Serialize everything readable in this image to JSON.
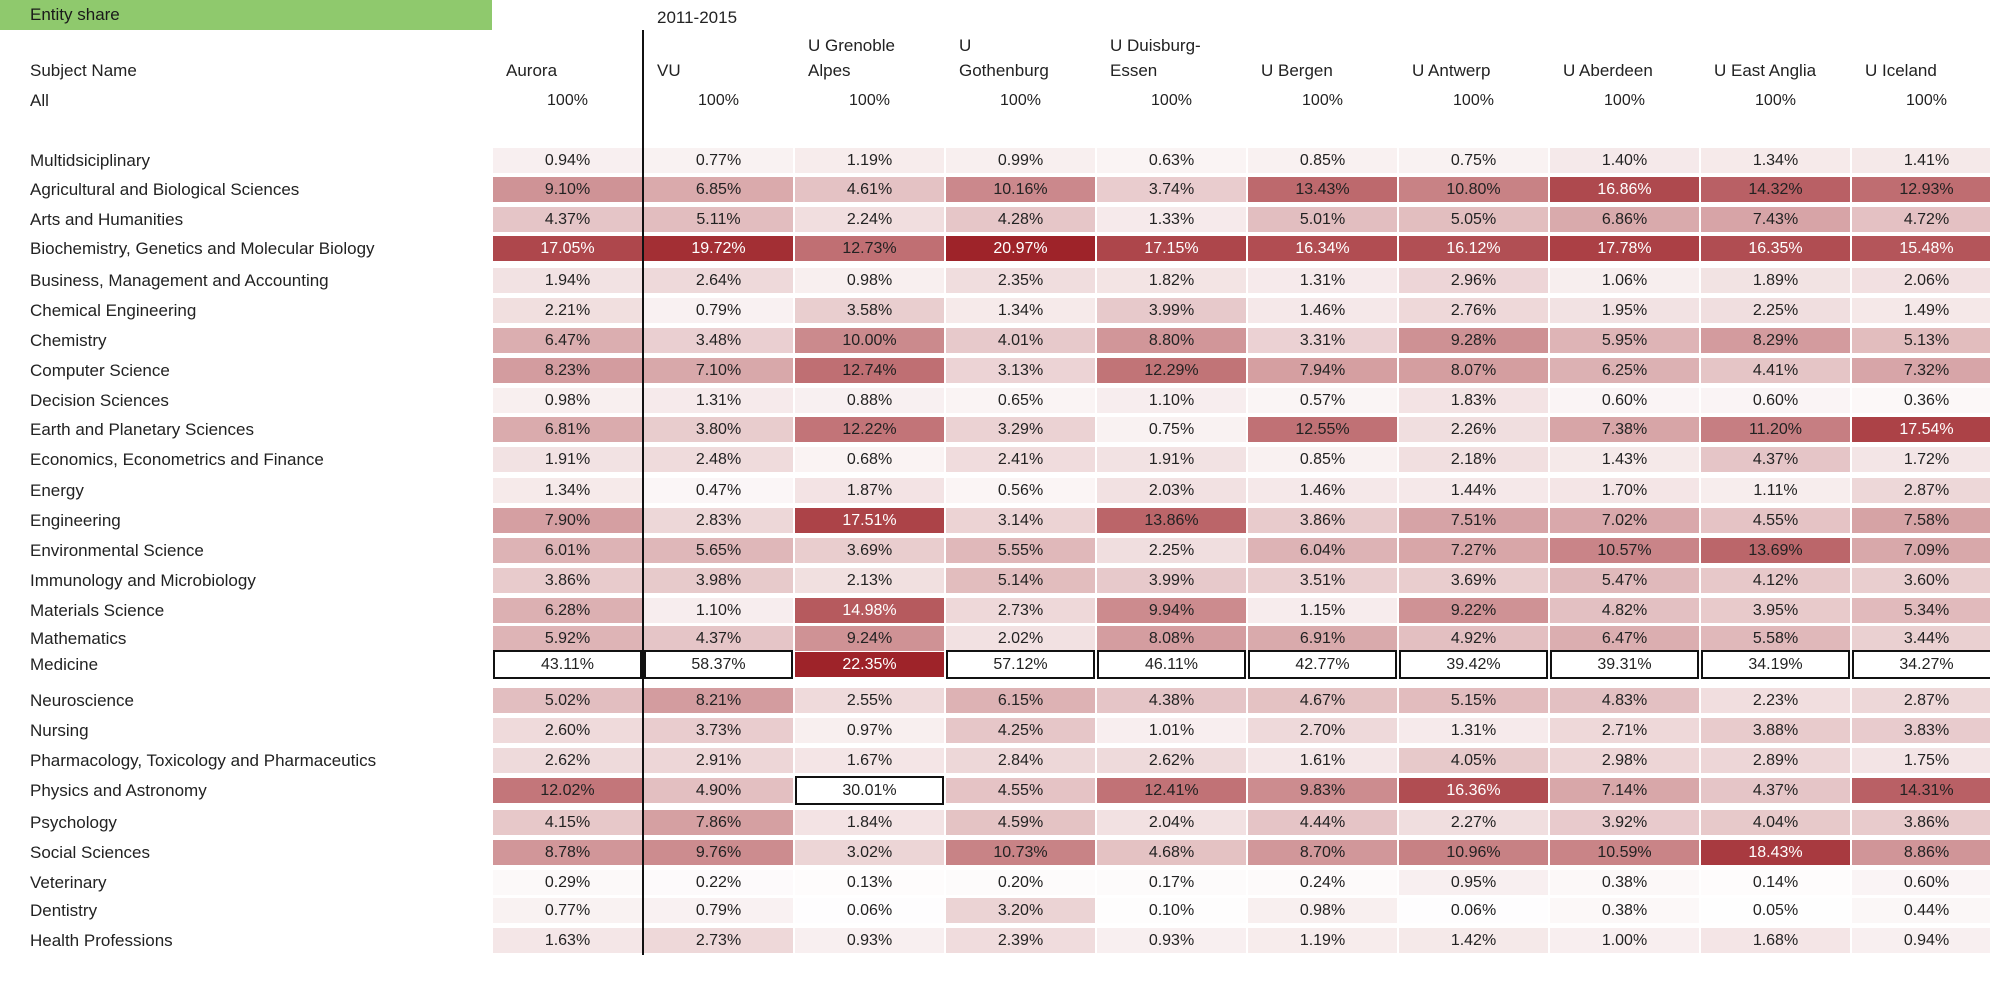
{
  "sheet": {
    "title": "Entity share",
    "period": "2011-2015",
    "row_header": "Subject Name",
    "all_label": "All"
  },
  "chart_data": {
    "type": "heatmap",
    "title": "Entity share",
    "period": "2011-2015",
    "color_scale": {
      "low": "#ffffff",
      "high": "#9e1f25"
    },
    "columns": [
      {
        "name": "Aurora",
        "line1": "",
        "line2": "Aurora"
      },
      {
        "name": "VU",
        "line1": "",
        "line2": "VU"
      },
      {
        "name": "U Grenoble Alpes",
        "line1": "U Grenoble",
        "line2": "Alpes"
      },
      {
        "name": "U Gothenburg",
        "line1": "U",
        "line2": "Gothenburg"
      },
      {
        "name": "U Duisburg-Essen",
        "line1": "U Duisburg-",
        "line2": "Essen"
      },
      {
        "name": "U Bergen",
        "line1": "",
        "line2": "U Bergen"
      },
      {
        "name": "U Antwerp",
        "line1": "",
        "line2": "U Antwerp"
      },
      {
        "name": "U Aberdeen",
        "line1": "",
        "line2": "U Aberdeen"
      },
      {
        "name": "U East Anglia",
        "line1": "",
        "line2": "U East Anglia"
      },
      {
        "name": "U Iceland",
        "line1": "",
        "line2": "U Iceland"
      }
    ],
    "all_values": [
      "100%",
      "100%",
      "100%",
      "100%",
      "100%",
      "100%",
      "100%",
      "100%",
      "100%",
      "100%"
    ],
    "rows": [
      {
        "subject": "Multidsiciplinary",
        "values": [
          "0.94%",
          "0.77%",
          "1.19%",
          "0.99%",
          "0.63%",
          "0.85%",
          "0.75%",
          "1.40%",
          "1.34%",
          "1.41%"
        ]
      },
      {
        "subject": "Agricultural and Biological Sciences",
        "values": [
          "9.10%",
          "6.85%",
          "4.61%",
          "10.16%",
          "3.74%",
          "13.43%",
          "10.80%",
          "16.86%",
          "14.32%",
          "12.93%"
        ]
      },
      {
        "subject": "Arts and Humanities",
        "values": [
          "4.37%",
          "5.11%",
          "2.24%",
          "4.28%",
          "1.33%",
          "5.01%",
          "5.05%",
          "6.86%",
          "7.43%",
          "4.72%"
        ]
      },
      {
        "subject": "Biochemistry, Genetics and Molecular Biology",
        "values": [
          "17.05%",
          "19.72%",
          "12.73%",
          "20.97%",
          "17.15%",
          "16.34%",
          "16.12%",
          "17.78%",
          "16.35%",
          "15.48%"
        ]
      },
      {
        "subject": "Business, Management and Accounting",
        "values": [
          "1.94%",
          "2.64%",
          "0.98%",
          "2.35%",
          "1.82%",
          "1.31%",
          "2.96%",
          "1.06%",
          "1.89%",
          "2.06%"
        ]
      },
      {
        "subject": "Chemical Engineering",
        "values": [
          "2.21%",
          "0.79%",
          "3.58%",
          "1.34%",
          "3.99%",
          "1.46%",
          "2.76%",
          "1.95%",
          "2.25%",
          "1.49%"
        ]
      },
      {
        "subject": "Chemistry",
        "values": [
          "6.47%",
          "3.48%",
          "10.00%",
          "4.01%",
          "8.80%",
          "3.31%",
          "9.28%",
          "5.95%",
          "8.29%",
          "5.13%"
        ]
      },
      {
        "subject": "Computer Science",
        "values": [
          "8.23%",
          "7.10%",
          "12.74%",
          "3.13%",
          "12.29%",
          "7.94%",
          "8.07%",
          "6.25%",
          "4.41%",
          "7.32%"
        ]
      },
      {
        "subject": "Decision Sciences",
        "values": [
          "0.98%",
          "1.31%",
          "0.88%",
          "0.65%",
          "1.10%",
          "0.57%",
          "1.83%",
          "0.60%",
          "0.60%",
          "0.36%"
        ]
      },
      {
        "subject": "Earth and Planetary Sciences",
        "values": [
          "6.81%",
          "3.80%",
          "12.22%",
          "3.29%",
          "0.75%",
          "12.55%",
          "2.26%",
          "7.38%",
          "11.20%",
          "17.54%"
        ]
      },
      {
        "subject": "Economics, Econometrics and Finance",
        "values": [
          "1.91%",
          "2.48%",
          "0.68%",
          "2.41%",
          "1.91%",
          "0.85%",
          "2.18%",
          "1.43%",
          "4.37%",
          "1.72%"
        ]
      },
      {
        "subject": "Energy",
        "values": [
          "1.34%",
          "0.47%",
          "1.87%",
          "0.56%",
          "2.03%",
          "1.46%",
          "1.44%",
          "1.70%",
          "1.11%",
          "2.87%"
        ]
      },
      {
        "subject": "Engineering",
        "values": [
          "7.90%",
          "2.83%",
          "17.51%",
          "3.14%",
          "13.86%",
          "3.86%",
          "7.51%",
          "7.02%",
          "4.55%",
          "7.58%"
        ]
      },
      {
        "subject": "Environmental Science",
        "values": [
          "6.01%",
          "5.65%",
          "3.69%",
          "5.55%",
          "2.25%",
          "6.04%",
          "7.27%",
          "10.57%",
          "13.69%",
          "7.09%"
        ]
      },
      {
        "subject": "Immunology and Microbiology",
        "values": [
          "3.86%",
          "3.98%",
          "2.13%",
          "5.14%",
          "3.99%",
          "3.51%",
          "3.69%",
          "5.47%",
          "4.12%",
          "3.60%"
        ]
      },
      {
        "subject": "Materials Science",
        "values": [
          "6.28%",
          "1.10%",
          "14.98%",
          "2.73%",
          "9.94%",
          "1.15%",
          "9.22%",
          "4.82%",
          "3.95%",
          "5.34%"
        ]
      },
      {
        "subject": "Mathematics",
        "values": [
          "5.92%",
          "4.37%",
          "9.24%",
          "2.02%",
          "8.08%",
          "6.91%",
          "4.92%",
          "6.47%",
          "5.58%",
          "3.44%"
        ]
      },
      {
        "subject": "Medicine",
        "values": [
          "43.11%",
          "58.37%",
          "22.35%",
          "57.12%",
          "46.11%",
          "42.77%",
          "39.42%",
          "39.31%",
          "34.19%",
          "34.27%"
        ]
      },
      {
        "subject": "Neuroscience",
        "values": [
          "5.02%",
          "8.21%",
          "2.55%",
          "6.15%",
          "4.38%",
          "4.67%",
          "5.15%",
          "4.83%",
          "2.23%",
          "2.87%"
        ]
      },
      {
        "subject": "Nursing",
        "values": [
          "2.60%",
          "3.73%",
          "0.97%",
          "4.25%",
          "1.01%",
          "2.70%",
          "1.31%",
          "2.71%",
          "3.88%",
          "3.83%"
        ]
      },
      {
        "subject": "Pharmacology, Toxicology and Pharmaceutics",
        "values": [
          "2.62%",
          "2.91%",
          "1.67%",
          "2.84%",
          "2.62%",
          "1.61%",
          "4.05%",
          "2.98%",
          "2.89%",
          "1.75%"
        ]
      },
      {
        "subject": "Physics and Astronomy",
        "values": [
          "12.02%",
          "4.90%",
          "30.01%",
          "4.55%",
          "12.41%",
          "9.83%",
          "16.36%",
          "7.14%",
          "4.37%",
          "14.31%"
        ]
      },
      {
        "subject": "Psychology",
        "values": [
          "4.15%",
          "7.86%",
          "1.84%",
          "4.59%",
          "2.04%",
          "4.44%",
          "2.27%",
          "3.92%",
          "4.04%",
          "3.86%"
        ]
      },
      {
        "subject": "Social Sciences",
        "values": [
          "8.78%",
          "9.76%",
          "3.02%",
          "10.73%",
          "4.68%",
          "8.70%",
          "10.96%",
          "10.59%",
          "18.43%",
          "8.86%"
        ]
      },
      {
        "subject": "Veterinary",
        "values": [
          "0.29%",
          "0.22%",
          "0.13%",
          "0.20%",
          "0.17%",
          "0.24%",
          "0.95%",
          "0.38%",
          "0.14%",
          "0.60%"
        ]
      },
      {
        "subject": "Dentistry",
        "values": [
          "0.77%",
          "0.79%",
          "0.06%",
          "3.20%",
          "0.10%",
          "0.98%",
          "0.06%",
          "0.38%",
          "0.05%",
          "0.44%"
        ]
      },
      {
        "subject": "Health Professions",
        "values": [
          "1.63%",
          "2.73%",
          "0.93%",
          "2.39%",
          "0.93%",
          "1.19%",
          "1.42%",
          "1.00%",
          "1.68%",
          "0.94%"
        ]
      }
    ],
    "boxed_cells": [
      {
        "subject": "Medicine",
        "column": "Aurora"
      },
      {
        "subject": "Medicine",
        "column": "VU"
      },
      {
        "subject": "Medicine",
        "column": "U Gothenburg"
      },
      {
        "subject": "Medicine",
        "column": "U Duisburg-Essen"
      },
      {
        "subject": "Medicine",
        "column": "U Bergen"
      },
      {
        "subject": "Medicine",
        "column": "U Antwerp"
      },
      {
        "subject": "Medicine",
        "column": "U Aberdeen"
      },
      {
        "subject": "Medicine",
        "column": "U East Anglia"
      },
      {
        "subject": "Medicine",
        "column": "U Iceland"
      },
      {
        "subject": "Physics and Astronomy",
        "column": "U Grenoble Alpes"
      }
    ]
  }
}
